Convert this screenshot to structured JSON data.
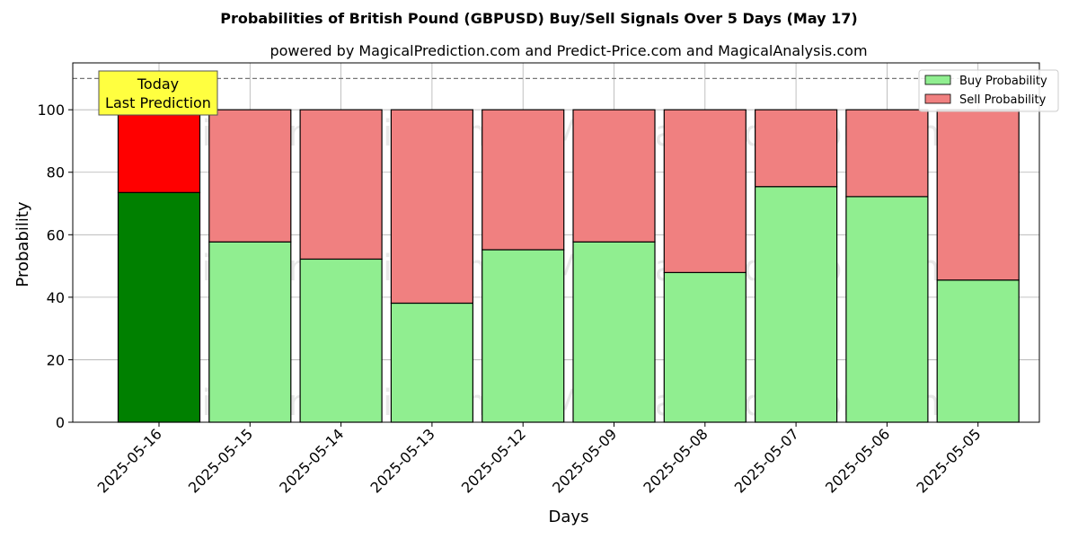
{
  "chart_data": {
    "type": "bar",
    "stacked": true,
    "title": "Probabilities of British Pound (GBPUSD) Buy/Sell Signals Over 5 Days (May 17)",
    "subtitle": "powered by MagicalPrediction.com and Predict-Price.com and MagicalAnalysis.com",
    "xlabel": "Days",
    "ylabel": "Probability",
    "ylim": [
      0,
      115
    ],
    "yticks": [
      0,
      20,
      40,
      60,
      80,
      100
    ],
    "grid": true,
    "reference_line": 110,
    "legend_position": "top-right",
    "categories": [
      "2025-05-16",
      "2025-05-15",
      "2025-05-14",
      "2025-05-13",
      "2025-05-12",
      "2025-05-09",
      "2025-05-08",
      "2025-05-07",
      "2025-05-06",
      "2025-05-05"
    ],
    "series": [
      {
        "name": "Buy Probability",
        "color": "#90ee90",
        "highlight_color": "#008000",
        "values": [
          73.5,
          57.7,
          52.2,
          38.1,
          55.2,
          57.7,
          47.9,
          75.4,
          72.2,
          45.5
        ]
      },
      {
        "name": "Sell Probability",
        "color": "#f08080",
        "highlight_color": "#ff0000",
        "values": [
          26.5,
          42.3,
          47.8,
          61.9,
          44.8,
          42.3,
          52.1,
          24.6,
          27.8,
          54.5
        ]
      }
    ],
    "highlight_index": 0,
    "annotation": {
      "line1": "Today",
      "line2": "Last Prediction",
      "background": "#ffff40"
    },
    "watermarks": [
      "MagicalAnalysis.com",
      "MagicalPrediction.com"
    ]
  }
}
